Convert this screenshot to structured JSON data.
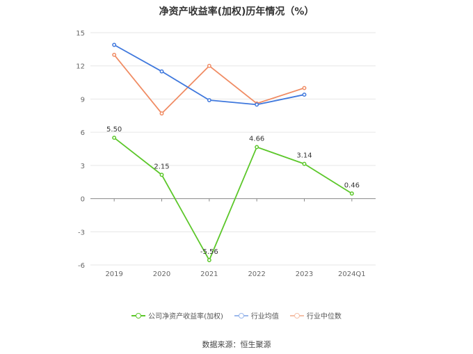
{
  "chart_data": {
    "type": "line",
    "title": "净资产收益率(加权)历年情况（%）",
    "categories": [
      "2019",
      "2020",
      "2021",
      "2022",
      "2023",
      "2024Q1"
    ],
    "ylim": [
      -6,
      15
    ],
    "yticks": [
      15,
      12,
      9,
      6,
      3,
      0,
      -3,
      -6
    ],
    "grid": true,
    "legend_position": "bottom",
    "series": [
      {
        "name": "公司净资产收益率(加权)",
        "color": "#5cc72a",
        "values": [
          5.5,
          2.15,
          -5.56,
          4.66,
          3.14,
          0.46
        ],
        "labels": [
          "5.50",
          "2.15",
          "-5.56",
          "4.66",
          "3.14",
          "0.46"
        ]
      },
      {
        "name": "行业均值",
        "color": "#3f78dd",
        "values": [
          13.9,
          11.5,
          8.9,
          8.5,
          9.4,
          null
        ]
      },
      {
        "name": "行业中位数",
        "color": "#f08c64",
        "values": [
          13.0,
          7.7,
          12.0,
          8.6,
          10.0,
          null
        ]
      }
    ]
  },
  "source": "数据来源：恒生聚源"
}
